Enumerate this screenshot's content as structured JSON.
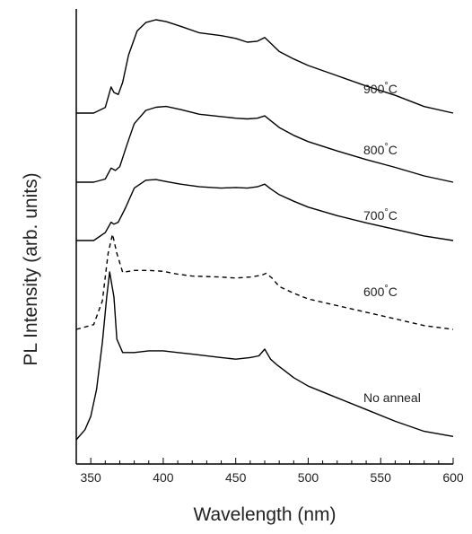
{
  "chart_data": {
    "type": "line",
    "title": "",
    "xlabel": "Wavelength (nm)",
    "ylabel": "PL Intensity (arb. units)",
    "xlim": [
      340,
      600
    ],
    "xticks": [
      350,
      400,
      450,
      500,
      550,
      600
    ],
    "y_tick_labels": false,
    "grid": false,
    "legend": "none",
    "series": [
      {
        "name": "900°C",
        "label_text": "900",
        "label_suffix": "°C",
        "style": "solid",
        "color": "#000000",
        "points": [
          [
            340,
            0.0
          ],
          [
            352,
            0.0
          ],
          [
            360,
            0.06
          ],
          [
            364,
            0.28
          ],
          [
            366,
            0.22
          ],
          [
            369,
            0.2
          ],
          [
            372,
            0.33
          ],
          [
            376,
            0.62
          ],
          [
            382,
            0.88
          ],
          [
            388,
            0.97
          ],
          [
            395,
            1.0
          ],
          [
            402,
            0.98
          ],
          [
            412,
            0.93
          ],
          [
            425,
            0.86
          ],
          [
            440,
            0.83
          ],
          [
            450,
            0.8
          ],
          [
            458,
            0.76
          ],
          [
            465,
            0.77
          ],
          [
            470,
            0.81
          ],
          [
            474,
            0.75
          ],
          [
            480,
            0.66
          ],
          [
            490,
            0.58
          ],
          [
            500,
            0.51
          ],
          [
            520,
            0.4
          ],
          [
            540,
            0.29
          ],
          [
            560,
            0.19
          ],
          [
            580,
            0.07
          ],
          [
            600,
            0.0
          ]
        ]
      },
      {
        "name": "800°C",
        "label_text": "800",
        "label_suffix": "°C",
        "style": "solid",
        "color": "#000000",
        "points": [
          [
            340,
            0.0
          ],
          [
            352,
            0.0
          ],
          [
            360,
            0.04
          ],
          [
            364,
            0.18
          ],
          [
            367,
            0.15
          ],
          [
            370,
            0.2
          ],
          [
            375,
            0.48
          ],
          [
            380,
            0.75
          ],
          [
            388,
            0.92
          ],
          [
            395,
            0.96
          ],
          [
            402,
            0.97
          ],
          [
            412,
            0.93
          ],
          [
            425,
            0.87
          ],
          [
            440,
            0.84
          ],
          [
            450,
            0.82
          ],
          [
            458,
            0.81
          ],
          [
            465,
            0.82
          ],
          [
            470,
            0.85
          ],
          [
            474,
            0.79
          ],
          [
            480,
            0.7
          ],
          [
            490,
            0.6
          ],
          [
            500,
            0.52
          ],
          [
            520,
            0.4
          ],
          [
            540,
            0.29
          ],
          [
            560,
            0.19
          ],
          [
            580,
            0.08
          ],
          [
            600,
            0.0
          ]
        ]
      },
      {
        "name": "700°C",
        "label_text": "700",
        "label_suffix": "°C",
        "style": "solid",
        "color": "#000000",
        "points": [
          [
            340,
            0.0
          ],
          [
            352,
            0.0
          ],
          [
            360,
            0.12
          ],
          [
            364,
            0.28
          ],
          [
            366,
            0.25
          ],
          [
            369,
            0.28
          ],
          [
            374,
            0.5
          ],
          [
            380,
            0.8
          ],
          [
            388,
            0.92
          ],
          [
            395,
            0.93
          ],
          [
            402,
            0.9
          ],
          [
            412,
            0.86
          ],
          [
            425,
            0.82
          ],
          [
            440,
            0.8
          ],
          [
            450,
            0.81
          ],
          [
            458,
            0.8
          ],
          [
            465,
            0.82
          ],
          [
            470,
            0.86
          ],
          [
            474,
            0.79
          ],
          [
            480,
            0.7
          ],
          [
            490,
            0.6
          ],
          [
            500,
            0.51
          ],
          [
            520,
            0.38
          ],
          [
            540,
            0.27
          ],
          [
            560,
            0.17
          ],
          [
            580,
            0.07
          ],
          [
            600,
            0.0
          ]
        ]
      },
      {
        "name": "600°C",
        "label_text": "600",
        "label_suffix": "°C",
        "style": "dashed",
        "color": "#000000",
        "points": [
          [
            340,
            0.0
          ],
          [
            352,
            0.05
          ],
          [
            358,
            0.3
          ],
          [
            362,
            0.8
          ],
          [
            365,
            1.0
          ],
          [
            368,
            0.8
          ],
          [
            372,
            0.6
          ],
          [
            380,
            0.62
          ],
          [
            390,
            0.62
          ],
          [
            400,
            0.61
          ],
          [
            410,
            0.58
          ],
          [
            420,
            0.56
          ],
          [
            440,
            0.55
          ],
          [
            450,
            0.54
          ],
          [
            460,
            0.55
          ],
          [
            468,
            0.57
          ],
          [
            471,
            0.59
          ],
          [
            475,
            0.54
          ],
          [
            480,
            0.45
          ],
          [
            490,
            0.38
          ],
          [
            500,
            0.32
          ],
          [
            520,
            0.25
          ],
          [
            540,
            0.18
          ],
          [
            560,
            0.11
          ],
          [
            580,
            0.04
          ],
          [
            600,
            0.0
          ]
        ]
      },
      {
        "name": "No anneal",
        "label_text": "No anneal",
        "label_suffix": "",
        "style": "solid",
        "color": "#000000",
        "points": [
          [
            340,
            0.0
          ],
          [
            342,
            0.02
          ],
          [
            346,
            0.06
          ],
          [
            350,
            0.14
          ],
          [
            354,
            0.3
          ],
          [
            358,
            0.58
          ],
          [
            361,
            0.85
          ],
          [
            363,
            1.0
          ],
          [
            366,
            0.85
          ],
          [
            368,
            0.6
          ],
          [
            372,
            0.52
          ],
          [
            380,
            0.52
          ],
          [
            390,
            0.53
          ],
          [
            400,
            0.53
          ],
          [
            410,
            0.52
          ],
          [
            420,
            0.51
          ],
          [
            440,
            0.49
          ],
          [
            450,
            0.48
          ],
          [
            460,
            0.49
          ],
          [
            466,
            0.5
          ],
          [
            470,
            0.54
          ],
          [
            474,
            0.48
          ],
          [
            478,
            0.45
          ],
          [
            484,
            0.41
          ],
          [
            490,
            0.37
          ],
          [
            500,
            0.32
          ],
          [
            520,
            0.25
          ],
          [
            540,
            0.18
          ],
          [
            560,
            0.11
          ],
          [
            580,
            0.05
          ],
          [
            600,
            0.02
          ]
        ]
      }
    ]
  }
}
